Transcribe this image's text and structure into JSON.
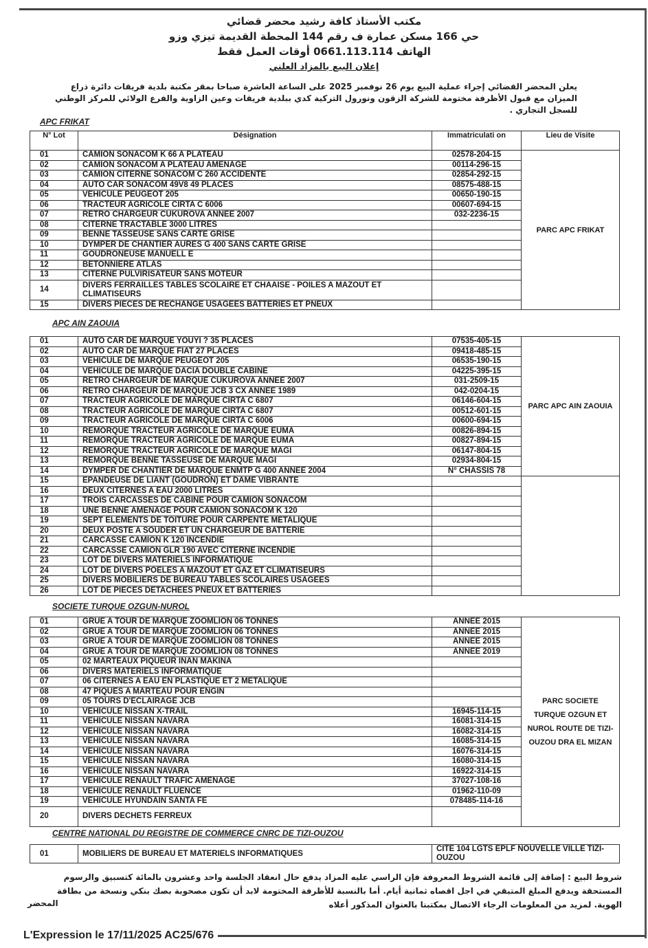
{
  "header": {
    "line1": "مكتب الأستاذ كافة رشيد محضر قضائي",
    "line2": "حي 166 مسكن عمارة ف رقم 144 المحطة القديمة تيزي وزو",
    "line3": "الهاتف 0661.113.114 أوقات العمل فقط",
    "title": "إعلان البيع بالمزاد العلني"
  },
  "intro": "يعلن المحضر القضائي إجراء عملية البيع يوم 26 نوفمبر 2025 على الساعة العاشرة صباحا بمقر مكتبة بلدية فريقات دائرة ذراع الميزان مع قبول الأظرفة مختومة للشركة الزقون ونورول التركية كدي ببلدية فريقات وعين الزاوية والفرع الولائي للمركز الوطني للسجل التجاري .",
  "columns": {
    "lot": "N° Lot",
    "designation": "Désignation",
    "immat": "Immatriculati on",
    "lieu": "Lieu de Visite"
  },
  "sections": [
    {
      "title": "APC FRIKAT",
      "lieu": "PARC APC FRIKAT",
      "rows": [
        [
          "01",
          "CAMION SONACOM  K 66 A PLATEAU",
          "02578-204-15"
        ],
        [
          "02",
          "CAMION SONACOM A PLATEAU AMENAGE",
          "00114-296-15"
        ],
        [
          "03",
          "CAMION CITERNE SONACOM C 260 ACCIDENTE",
          "02854-292-15"
        ],
        [
          "04",
          "AUTO CAR SONACOM 49V8  49 PLACES",
          "08575-488-15"
        ],
        [
          "05",
          "VEHICULE PEUGEOT 205",
          "00650-190-15"
        ],
        [
          "06",
          "TRACTEUR AGRICOLE  CIRTA C 6006",
          "00607-694-15"
        ],
        [
          "07",
          "RETRO CHARGEUR CUKUROVA ANNEE  2007",
          "032-2236-15"
        ],
        [
          "08",
          "CITERNE TRACTABLE 3000 LITRES",
          ""
        ],
        [
          "09",
          "BENNE TASSEUSE SANS CARTE GRISE",
          ""
        ],
        [
          "10",
          "DYMPER DE CHANTIER AURES G 400 SANS CARTE GRISE",
          ""
        ],
        [
          "11",
          "GOUDRONEUSE MANUELL E",
          ""
        ],
        [
          "12",
          "BETONNIERE ATLAS",
          ""
        ],
        [
          "13",
          "CITERNE PULVIRISATEUR SANS MOTEUR",
          ""
        ],
        [
          "14",
          "DIVERS FERRAILLES TABLES SCOLAIRE ET CHAAISE - POILES A MAZOUT ET CLIMATISEURS",
          ""
        ],
        [
          "15",
          "DIVERS PIECES DE RECHANGE USAGEES BATTERIES ET PNEUX",
          ""
        ]
      ]
    },
    {
      "title": "APC AIN ZAOUIA",
      "lieu": "PARC APC AIN ZAOUIA",
      "rows": [
        [
          "01",
          "AUTO CAR DE MARQUE YOUYI ?  35 PLACES",
          "07535-405-15"
        ],
        [
          "02",
          "AUTO CAR DE MARQUE FIAT 27 PLACES",
          "09418-485-15"
        ],
        [
          "03",
          "VEHICULE DE MARQUE PEUGEOT 205",
          "06535-190-15"
        ],
        [
          "04",
          "VEHICULE DE MARQUE DACIA DOUBLE CABINE",
          "04225-395-15"
        ],
        [
          "05",
          "RETRO CHARGEUR DE MARQUE CUKUROVA ANNEE 2007",
          "031-2509-15"
        ],
        [
          "06",
          "RETRO CHARGEUR DE MARQUE JCB 3 CX ANNEE 1989",
          "042-0204-15"
        ],
        [
          "07",
          "TRACTEUR AGRICOLE DE MARQUE CIRTA  C 6807",
          "06146-604-15"
        ],
        [
          "08",
          "TRACTEUR AGRICOLE DE MARQUE CIRTA C 6807",
          "00512-601-15"
        ],
        [
          "09",
          "TRACTEUR AGRICOLE DE MARQUE CIRTA C 6006",
          "00600-694-15"
        ],
        [
          "10",
          "REMORQUE TRACTEUR AGRICOLE DE MARQUE EUMA",
          "00826-894-15"
        ],
        [
          "11",
          "REMORQUE TRACTEUR AGRICOLE DE MARQUE EUMA",
          "00827-894-15"
        ],
        [
          "12",
          "REMORQUE TRACTEUR AGRICOLE DE MARQUE MAGI",
          "06147-804-15"
        ],
        [
          "13",
          "REMORQUE BENNE TASSEUSE DE MARQUE MAGI",
          "02934-804-15"
        ],
        [
          "14",
          "DYMPER DE CHANTIER DE MARQUE ENMTP G 400 ANNEE 2004",
          "N° CHASSIS 78"
        ],
        [
          "15",
          "EPANDEUSE DE LIANT (GOUDRON) ET DAME VIBRANTE",
          ""
        ],
        [
          "16",
          "DEUX CITERNES A EAU 2000 LITRES",
          ""
        ],
        [
          "17",
          "TROIS CARCASSES DE CABINE POUR CAMION SONACOM",
          ""
        ],
        [
          "18",
          "UNE BENNE AMENAGE POUR CAMION SONACOM K 120",
          ""
        ],
        [
          "19",
          "SEPT ELEMENTS DE TOITURE POUR CARPENTE METALIQUE",
          ""
        ],
        [
          "20",
          "DEUX POSTE A SOUDER ET UN CHARGEUR DE BATTERIE",
          ""
        ],
        [
          "21",
          "CARCASSE CAMION K 120 INCENDIE",
          ""
        ],
        [
          "22",
          "CARCASSE CAMION GLR 190 AVEC CITERNE INCENDIE",
          ""
        ],
        [
          "23",
          "LOT DE DIVERS MATERIELS INFORMATIQUE",
          ""
        ],
        [
          "24",
          "LOT DE DIVERS POELES A MAZOUT ET GAZ ET CLIMATISEURS",
          ""
        ],
        [
          "25",
          "DIVERS MOBILIERS DE BUREAU TABLES SCOLAIRES USAGEES",
          ""
        ],
        [
          "26",
          "LOT DE PIECES DETACHEES PNEUX ET BATTERIES",
          ""
        ]
      ]
    },
    {
      "title": "SOCIETE TURQUE OZGUN-NUROL",
      "lieu": "PARC SOCIETE TURQUE OZGUN ET NUROL ROUTE DE TIZI-OUZOU DRA EL MIZAN",
      "rows": [
        [
          "01",
          "GRUE A TOUR DE MARQUE ZOOMLION 06 TONNES",
          "ANNEE 2015"
        ],
        [
          "02",
          "GRUE A TOUR DE MARQUE ZOOMLION 06 TONNES",
          "ANNEE 2015"
        ],
        [
          "03",
          "GRUE A TOUR DE MARQUE ZOOMLION 08 TONNES",
          "ANNEE 2015"
        ],
        [
          "04",
          "GRUE A TOUR DE MARQUE ZOOMLION 08 TONNES",
          "ANNEE 2019"
        ],
        [
          "05",
          "02 MARTEAUX PIQUEUR INAN MAKINA",
          ""
        ],
        [
          "06",
          "DIVERS MATERIELS INFORMATIQUE",
          ""
        ],
        [
          "07",
          "06 CITERNES A EAU EN PLASTIQUE ET 2 METALIQUE",
          ""
        ],
        [
          "08",
          "47 PIQUES A MARTEAU POUR ENGIN",
          ""
        ],
        [
          "09",
          "05 TOURS D'ECLAIRAGE JCB",
          ""
        ],
        [
          "10",
          "VEHICULE NISSAN X-TRAIL",
          "16945-114-15"
        ],
        [
          "11",
          "VEHICULE NISSAN NAVARA",
          "16081-314-15"
        ],
        [
          "12",
          "VEHICULE NISSAN NAVARA",
          "16082-314-15"
        ],
        [
          "13",
          "VEHICULE NISSAN NAVARA",
          "16085-314-15"
        ],
        [
          "14",
          "VEHICULE NISSAN NAVARA",
          "16076-314-15"
        ],
        [
          "15",
          "VEHICULE NISSAN NAVARA",
          "16080-314-15"
        ],
        [
          "16",
          "VEHICULE NISSAN NAVARA",
          "16922-314-15"
        ],
        [
          "17",
          "VEHICULE RENAULT TRAFIC AMENAGE",
          "37027-108-16"
        ],
        [
          "18",
          "VEHICULE RENAULT FLUENCE",
          "01962-110-09"
        ],
        [
          "19",
          "VEHICULE HYUNDAIN SANTA FE",
          "078485-114-16"
        ],
        [
          "20",
          "DIVERS DECHETS FERREUX",
          ""
        ]
      ]
    },
    {
      "title": "CENTRE NATIONAL DU REGISTRE DE COMMERCE CNRC DE TIZI-OUZOU",
      "rows": [
        [
          "01",
          "MOBILIERS DE BUREAU ET MATERIELS INFORMATIQUES",
          "CITE 104 LGTS EPLF NOUVELLE VILLE TIZI-OUZOU"
        ]
      ]
    }
  ],
  "conditions": "شروط البيع : إضافة إلى قائمة الشروط المعروفة فإن الراسي عليه المزاد يدفع حال انعقاد الجلسة واحد وعشرون بالمائة كتسبيق والرسوم المستحقة ويدفع المبلغ المتبقي في اجل اقصاه ثمانية أيام. أما بالنسبة للأظرفة المختومة لابد أن تكون مصحوبة بصك بنكي ونسخة من بطاقة الهوية. لمزيد من المعلومات الرجاء الاتصال بمكتبنا بالعنوان المذكور أعلاه",
  "signature": "المحضر",
  "footer": "L'Expression le 17/11/2025   AC25/676"
}
